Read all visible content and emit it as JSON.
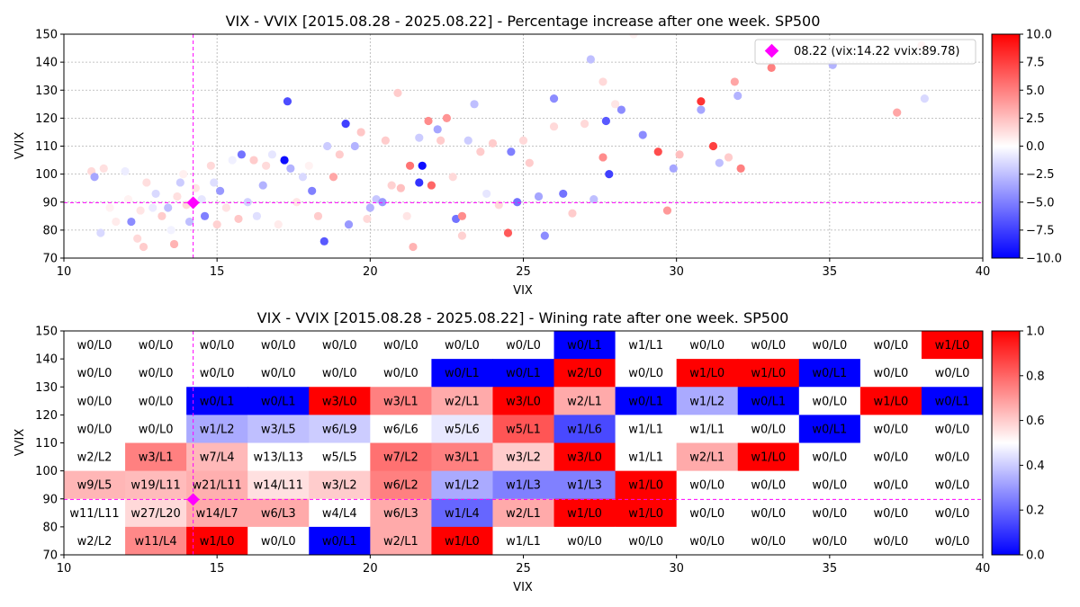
{
  "chart_data": [
    {
      "type": "scatter",
      "title": "VIX - VVIX [2015.08.28 - 2025.08.22]  - Percentage increase after one week. SP500",
      "xlabel": "VIX",
      "ylabel": "VVIX",
      "xlim": [
        10,
        40
      ],
      "ylim": [
        70,
        150
      ],
      "xticks": [
        "10",
        "15",
        "20",
        "25",
        "30",
        "35",
        "40"
      ],
      "yticks": [
        "70",
        "80",
        "90",
        "100",
        "110",
        "120",
        "130",
        "140",
        "150"
      ],
      "grid": true,
      "colorbar": {
        "min": -10,
        "max": 10,
        "colormap": "bwr",
        "ticks": [
          "−10.0",
          "−7.5",
          "−5.0",
          "−2.5",
          "0.0",
          "2.5",
          "5.0",
          "7.5",
          "10.0"
        ]
      },
      "legend": {
        "position": "top-right",
        "label": "08.22 (vix:14.22 vvix:89.78)"
      },
      "current": {
        "x": 14.22,
        "y": 89.78,
        "color": "#ff00ff"
      },
      "points": [
        [
          10.9,
          101,
          1.5
        ],
        [
          11.3,
          102,
          1.2
        ],
        [
          11.0,
          99,
          -3.5
        ],
        [
          11.5,
          88,
          0.5
        ],
        [
          11.2,
          79,
          -1.5
        ],
        [
          11.7,
          83,
          0.8
        ],
        [
          12.0,
          101,
          -0.7
        ],
        [
          12.1,
          91,
          0.5
        ],
        [
          12.2,
          83,
          -4.5
        ],
        [
          12.4,
          77,
          1.5
        ],
        [
          12.5,
          87,
          1.0
        ],
        [
          12.6,
          74,
          2.0
        ],
        [
          12.7,
          97,
          1.3
        ],
        [
          12.9,
          88,
          -0.8
        ],
        [
          13.0,
          93,
          -1.5
        ],
        [
          13.2,
          85,
          2.0
        ],
        [
          13.4,
          88,
          -2.5
        ],
        [
          13.5,
          80,
          -0.5
        ],
        [
          13.6,
          75,
          3.0
        ],
        [
          13.7,
          92,
          1.2
        ],
        [
          13.8,
          97,
          -2.0
        ],
        [
          13.9,
          100,
          0.6
        ],
        [
          14.0,
          89,
          1.5
        ],
        [
          14.1,
          83,
          -2.5
        ],
        [
          14.3,
          95,
          1.0
        ],
        [
          14.5,
          91,
          -1.0
        ],
        [
          14.6,
          85,
          -5.0
        ],
        [
          14.8,
          103,
          1.5
        ],
        [
          14.9,
          97,
          -1.3
        ],
        [
          15.0,
          82,
          1.8
        ],
        [
          15.1,
          94,
          -4.0
        ],
        [
          15.3,
          88,
          1.1
        ],
        [
          15.5,
          105,
          -0.6
        ],
        [
          15.7,
          84,
          2.2
        ],
        [
          15.8,
          107,
          -5.5
        ],
        [
          16.0,
          90,
          -1.8
        ],
        [
          16.2,
          105,
          2.0
        ],
        [
          16.3,
          85,
          -1.2
        ],
        [
          16.5,
          96,
          -3.0
        ],
        [
          16.6,
          103,
          1.4
        ],
        [
          16.8,
          107,
          -1.0
        ],
        [
          17.0,
          82,
          0.8
        ],
        [
          17.2,
          105,
          -9.5
        ],
        [
          17.3,
          126,
          -7.0
        ],
        [
          17.4,
          102,
          -3.0
        ],
        [
          17.6,
          90,
          1.0
        ],
        [
          17.8,
          99,
          -1.5
        ],
        [
          18.0,
          103,
          0.5
        ],
        [
          18.1,
          94,
          -5.0
        ],
        [
          18.3,
          85,
          2.0
        ],
        [
          18.5,
          76,
          -6.5
        ],
        [
          18.6,
          110,
          -2.0
        ],
        [
          18.8,
          99,
          3.5
        ],
        [
          19.0,
          107,
          2.0
        ],
        [
          19.2,
          118,
          -7.5
        ],
        [
          19.3,
          82,
          -4.0
        ],
        [
          19.5,
          110,
          -3.0
        ],
        [
          19.7,
          115,
          2.2
        ],
        [
          19.9,
          84,
          1.5
        ],
        [
          20.0,
          88,
          -3.0
        ],
        [
          20.2,
          91,
          -2.2
        ],
        [
          20.4,
          90,
          -4.0
        ],
        [
          20.5,
          112,
          2.0
        ],
        [
          20.7,
          96,
          1.8
        ],
        [
          20.9,
          129,
          2.0
        ],
        [
          21.0,
          95,
          2.5
        ],
        [
          21.2,
          85,
          1.0
        ],
        [
          21.3,
          103,
          5.5
        ],
        [
          21.4,
          74,
          3.0
        ],
        [
          21.6,
          97,
          -8.0
        ],
        [
          21.7,
          103,
          -9.5
        ],
        [
          21.9,
          119,
          4.5
        ],
        [
          22.0,
          96,
          6.0
        ],
        [
          22.2,
          116,
          -3.5
        ],
        [
          22.3,
          112,
          2.0
        ],
        [
          22.5,
          120,
          4.2
        ],
        [
          22.8,
          84,
          -5.5
        ],
        [
          23.0,
          85,
          4.5
        ],
        [
          23.2,
          112,
          -2.0
        ],
        [
          23.4,
          125,
          -2.5
        ],
        [
          23.6,
          108,
          2.0
        ],
        [
          23.8,
          93,
          -1.0
        ],
        [
          24.0,
          111,
          2.0
        ],
        [
          24.2,
          89,
          1.5
        ],
        [
          24.5,
          79,
          6.5
        ],
        [
          24.6,
          108,
          -5.0
        ],
        [
          24.8,
          90,
          -5.5
        ],
        [
          25.0,
          112,
          1.5
        ],
        [
          25.2,
          104,
          2.0
        ],
        [
          25.5,
          92,
          -3.5
        ],
        [
          25.7,
          78,
          -4.5
        ],
        [
          26.0,
          127,
          -4.5
        ],
        [
          26.3,
          93,
          -5.5
        ],
        [
          26.6,
          86,
          2.0
        ],
        [
          27.0,
          118,
          1.5
        ],
        [
          27.3,
          91,
          -2.5
        ],
        [
          27.6,
          106,
          4.5
        ],
        [
          27.7,
          119,
          -6.5
        ],
        [
          27.8,
          100,
          -7.5
        ],
        [
          28.0,
          125,
          1.0
        ],
        [
          28.2,
          123,
          -4.5
        ],
        [
          28.9,
          114,
          -4.5
        ],
        [
          29.4,
          108,
          7.0
        ],
        [
          29.7,
          87,
          4.0
        ],
        [
          29.9,
          102,
          -3.5
        ],
        [
          30.1,
          107,
          2.5
        ],
        [
          30.8,
          126,
          8.0
        ],
        [
          30.8,
          123,
          -3.5
        ],
        [
          31.2,
          110,
          7.5
        ],
        [
          31.4,
          104,
          -2.5
        ],
        [
          31.7,
          106,
          2.0
        ],
        [
          31.9,
          133,
          3.5
        ],
        [
          32.0,
          128,
          -3.0
        ],
        [
          32.1,
          102,
          5.0
        ],
        [
          33.1,
          138,
          5.0
        ],
        [
          35.1,
          139,
          -3.0
        ],
        [
          37.2,
          122,
          3.5
        ],
        [
          38.1,
          127,
          -1.5
        ],
        [
          38.0,
          146,
          3.0
        ],
        [
          28.6,
          150,
          0.5
        ],
        [
          27.2,
          141,
          -2.5
        ],
        [
          27.6,
          133,
          1.5
        ],
        [
          21.6,
          113,
          -2.0
        ],
        [
          22.7,
          99,
          1.5
        ],
        [
          23.0,
          78,
          1.8
        ],
        [
          26.0,
          117,
          1.5
        ]
      ]
    },
    {
      "type": "heatmap",
      "title": "VIX - VVIX [2015.08.28 - 2025.08.22]  - Wining rate after one week. SP500",
      "xlabel": "VIX",
      "ylabel": "VVIX",
      "xlim": [
        10,
        40
      ],
      "ylim": [
        70,
        150
      ],
      "xticks": [
        "10",
        "15",
        "20",
        "25",
        "30",
        "35",
        "40"
      ],
      "yticks": [
        "70",
        "80",
        "90",
        "100",
        "110",
        "120",
        "130",
        "140",
        "150"
      ],
      "x_bin_width": 2,
      "y_bin_height": 10,
      "colorbar": {
        "min": 0,
        "max": 1,
        "colormap": "bwr",
        "ticks": [
          "0.0",
          "0.2",
          "0.4",
          "0.6",
          "0.8",
          "1.0"
        ]
      },
      "current": {
        "x": 14.22,
        "y": 89.78,
        "color": "#ff00ff"
      },
      "rows_top_to_bottom": [
        [
          "w0/L0",
          "w0/L0",
          "w0/L0",
          "w0/L0",
          "w0/L0",
          "w0/L0",
          "w0/L0",
          "w0/L0",
          "w0/L1",
          "w1/L1",
          "w0/L0",
          "w0/L0",
          "w0/L0",
          "w0/L0",
          "w1/L0"
        ],
        [
          "w0/L0",
          "w0/L0",
          "w0/L0",
          "w0/L0",
          "w0/L0",
          "w0/L0",
          "w0/L1",
          "w0/L1",
          "w2/L0",
          "w0/L0",
          "w1/L0",
          "w1/L0",
          "w0/L1",
          "w0/L0",
          "w0/L0"
        ],
        [
          "w0/L0",
          "w0/L0",
          "w0/L1",
          "w0/L1",
          "w3/L0",
          "w3/L1",
          "w2/L1",
          "w3/L0",
          "w2/L1",
          "w0/L1",
          "w1/L2",
          "w0/L1",
          "w0/L0",
          "w1/L0",
          "w0/L1"
        ],
        [
          "w0/L0",
          "w0/L0",
          "w1/L2",
          "w3/L5",
          "w6/L9",
          "w6/L6",
          "w5/L6",
          "w5/L1",
          "w1/L6",
          "w1/L1",
          "w1/L1",
          "w0/L0",
          "w0/L1",
          "w0/L0",
          "w0/L0"
        ],
        [
          "w2/L2",
          "w3/L1",
          "w7/L4",
          "w13/L13",
          "w5/L5",
          "w7/L2",
          "w3/L1",
          "w3/L2",
          "w3/L0",
          "w1/L1",
          "w2/L1",
          "w1/L0",
          "w0/L0",
          "w0/L0",
          "w0/L0"
        ],
        [
          "w9/L5",
          "w19/L11",
          "w21/L11",
          "w14/L11",
          "w3/L2",
          "w6/L2",
          "w1/L2",
          "w1/L3",
          "w1/L3",
          "w1/L0",
          "w0/L0",
          "w0/L0",
          "w0/L0",
          "w0/L0",
          "w0/L0"
        ],
        [
          "w11/L11",
          "w27/L20",
          "w14/L7",
          "w6/L3",
          "w4/L4",
          "w6/L3",
          "w1/L4",
          "w2/L1",
          "w1/L0",
          "w1/L0",
          "w0/L0",
          "w0/L0",
          "w0/L0",
          "w0/L0",
          "w0/L0"
        ],
        [
          "w2/L2",
          "w11/L4",
          "w1/L0",
          "w0/L0",
          "w0/L1",
          "w2/L1",
          "w1/L0",
          "w1/L1",
          "w0/L0",
          "w0/L0",
          "w0/L0",
          "w0/L0",
          "w0/L0",
          "w0/L0",
          "w0/L0"
        ]
      ]
    }
  ]
}
